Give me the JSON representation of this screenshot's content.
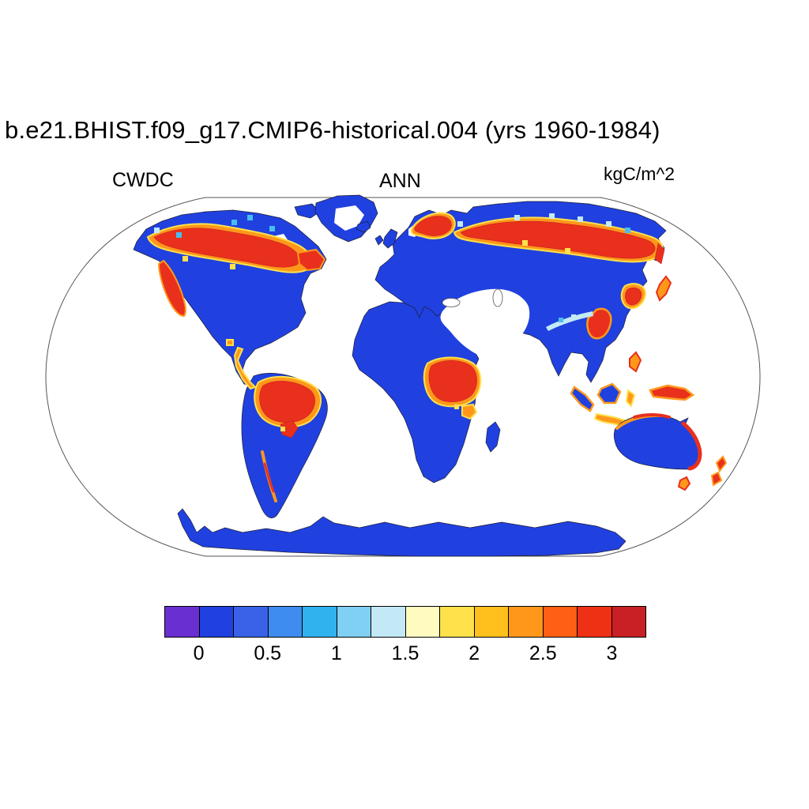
{
  "figure": {
    "title": "b.e21.BHIST.f09_g17.CMIP6-historical.004 (yrs 1960-1984)",
    "variable_label": "CWDC",
    "season_label": "ANN",
    "units_label": "kgC/m^2"
  },
  "colors": {
    "land-low": "#2041e0",
    "hot": "#e8301c",
    "hot-dark": "#c82024",
    "warm": "#ff981a",
    "yellow": "#ffe14c",
    "pale-yellow": "#fffbc0",
    "cyan": "#49bdf0",
    "light-cyan": "#c3e9f7",
    "purple": "#6a2fd0",
    "coast": "#1c1c34",
    "outline": "#555555"
  },
  "chart_data": {
    "type": "heatmap",
    "title": "b.e21.BHIST.f09_g17.CMIP6-historical.004 (yrs 1960-1984)",
    "variable": "CWDC",
    "aggregation": "ANN",
    "units": "kgC/m^2",
    "projection": "Robinson world map, oceans blank white",
    "colorbar": {
      "orientation": "horizontal",
      "tick_labels": [
        "0",
        "0.5",
        "1",
        "1.5",
        "2",
        "2.5",
        "3"
      ],
      "tick_values": [
        0,
        0.5,
        1,
        1.5,
        2,
        2.5,
        3
      ],
      "segment_colors": [
        "#6a2fd0",
        "#2041e0",
        "#3a62e8",
        "#3f8cf0",
        "#30b2ee",
        "#7fd0f2",
        "#c3e9f7",
        "#fffbc0",
        "#ffe14c",
        "#ffc01e",
        "#ff981a",
        "#ff5f14",
        "#ee3014",
        "#c82024"
      ]
    },
    "value_summary": {
      "low_value_regions": "most land area ~0-0.5 kgC/m^2 (deep blue)",
      "high_value_regions": [
        "boreal Canada and Alaska",
        "Pacific Northwest coast",
        "Quebec/Labrador",
        "Scandinavia",
        "Siberian taiga belt",
        "northeast China/Korea/Japan",
        "southeast Tibet-Yunnan",
        "Amazon basin",
        "Chilean coast",
        "Congo basin",
        "Indonesia and Philippines fringes",
        "New Guinea",
        "north and east Australian coasts",
        "Tasmania",
        "New Zealand"
      ],
      "blank_regions": [
        "oceans",
        "Greenland interior",
        "Arabian Peninsula and Middle East/Central Asian desert interior"
      ]
    }
  }
}
